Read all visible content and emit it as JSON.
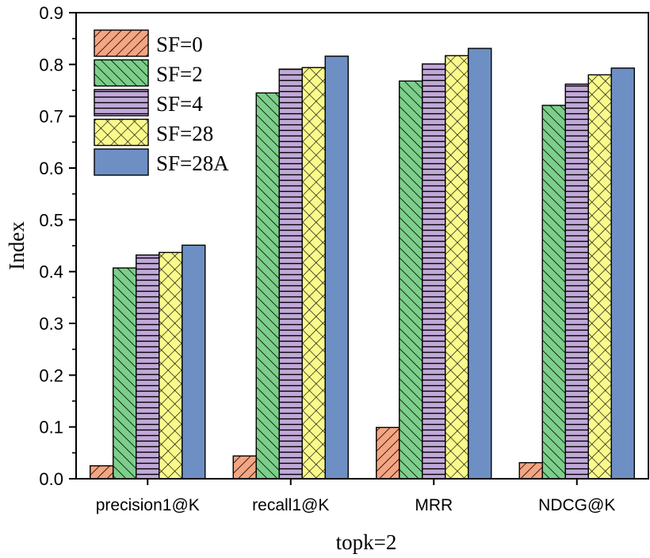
{
  "chart_data": {
    "type": "bar",
    "title": "",
    "xlabel": "topk=2",
    "ylabel": "Index",
    "ylim": [
      0,
      0.9
    ],
    "yticks": [
      "0.0",
      "0.1",
      "0.2",
      "0.3",
      "0.4",
      "0.5",
      "0.6",
      "0.7",
      "0.8",
      "0.9"
    ],
    "categories": [
      "precision1@K",
      "recall1@K",
      "MRR",
      "NDCG@K"
    ],
    "legend_position": "top-left",
    "grid": false,
    "series": [
      {
        "name": "SF=0",
        "values": [
          0.025,
          0.044,
          0.099,
          0.031
        ],
        "color": "#f4a582",
        "pattern": "diag-up"
      },
      {
        "name": "SF=2",
        "values": [
          0.407,
          0.745,
          0.768,
          0.721
        ],
        "color": "#7ccf8a",
        "pattern": "diag-down"
      },
      {
        "name": "SF=4",
        "values": [
          0.432,
          0.791,
          0.801,
          0.762
        ],
        "color": "#c2a9d9",
        "pattern": "horizontal"
      },
      {
        "name": "SF=28",
        "values": [
          0.437,
          0.794,
          0.817,
          0.78
        ],
        "color": "#fafa8c",
        "pattern": "crosshatch"
      },
      {
        "name": "SF=28A",
        "values": [
          0.451,
          0.816,
          0.831,
          0.793
        ],
        "color": "#6d8fc3",
        "pattern": "solid"
      }
    ]
  }
}
